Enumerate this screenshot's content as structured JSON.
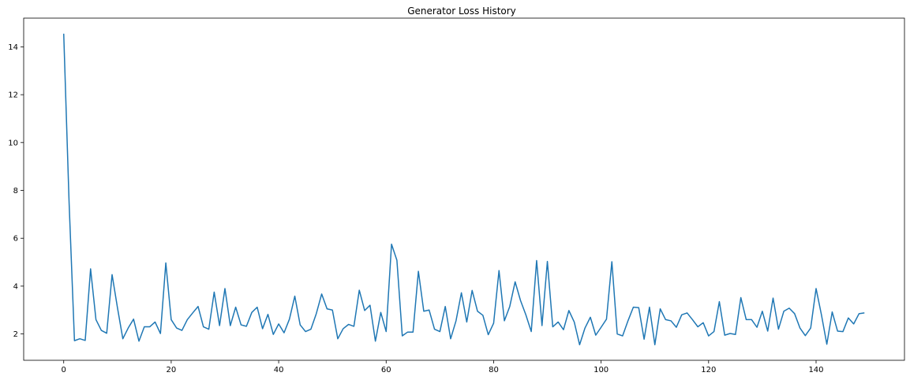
{
  "chart_data": {
    "type": "line",
    "title": "Generator Loss History",
    "xlabel": "",
    "ylabel": "",
    "xlim": [
      -7.45,
      156.45
    ],
    "ylim": [
      0.9,
      15.2
    ],
    "x_ticks": [
      0,
      20,
      40,
      60,
      80,
      100,
      120,
      140
    ],
    "y_ticks": [
      2,
      4,
      6,
      8,
      10,
      12,
      14
    ],
    "grid": false,
    "legend": "none",
    "series": [
      {
        "color": "#1f77b4",
        "x": [
          0,
          1,
          2,
          3,
          4,
          5,
          6,
          7,
          8,
          9,
          10,
          11,
          12,
          13,
          14,
          15,
          16,
          17,
          18,
          19,
          20,
          21,
          22,
          23,
          24,
          25,
          26,
          27,
          28,
          29,
          30,
          31,
          32,
          33,
          34,
          35,
          36,
          37,
          38,
          39,
          40,
          41,
          42,
          43,
          44,
          45,
          46,
          47,
          48,
          49,
          50,
          51,
          52,
          53,
          54,
          55,
          56,
          57,
          58,
          59,
          60,
          61,
          62,
          63,
          64,
          65,
          66,
          67,
          68,
          69,
          70,
          71,
          72,
          73,
          74,
          75,
          76,
          77,
          78,
          79,
          80,
          81,
          82,
          83,
          84,
          85,
          86,
          87,
          88,
          89,
          90,
          91,
          92,
          93,
          94,
          95,
          96,
          97,
          98,
          99,
          100,
          101,
          102,
          103,
          104,
          105,
          106,
          107,
          108,
          109,
          110,
          111,
          112,
          113,
          114,
          115,
          116,
          117,
          118,
          119,
          120,
          121,
          122,
          123,
          124,
          125,
          126,
          127,
          128,
          129,
          130,
          131,
          132,
          133,
          134,
          135,
          136,
          137,
          138,
          139,
          140,
          141,
          142,
          143,
          144,
          145,
          146,
          147,
          148,
          149
        ],
        "values": [
          14.55,
          7.5,
          1.72,
          1.8,
          1.73,
          4.72,
          2.6,
          2.15,
          2.03,
          4.48,
          3.1,
          1.8,
          2.25,
          2.62,
          1.7,
          2.3,
          2.3,
          2.5,
          2.02,
          4.97,
          2.6,
          2.25,
          2.15,
          2.6,
          2.88,
          3.15,
          2.3,
          2.2,
          3.75,
          2.35,
          3.9,
          2.35,
          3.12,
          2.38,
          2.32,
          2.9,
          3.12,
          2.22,
          2.82,
          1.98,
          2.42,
          2.05,
          2.62,
          3.58,
          2.38,
          2.1,
          2.2,
          2.85,
          3.67,
          3.05,
          3.0,
          1.8,
          2.22,
          2.4,
          2.32,
          3.83,
          2.98,
          3.2,
          1.7,
          2.9,
          2.1,
          5.75,
          5.08,
          1.92,
          2.08,
          2.08,
          4.62,
          2.95,
          3.0,
          2.2,
          2.1,
          3.15,
          1.8,
          2.55,
          3.72,
          2.5,
          3.82,
          2.95,
          2.78,
          1.97,
          2.45,
          4.65,
          2.55,
          3.15,
          4.18,
          3.4,
          2.8,
          2.1,
          5.07,
          2.35,
          5.03,
          2.3,
          2.5,
          2.18,
          2.98,
          2.5,
          1.55,
          2.25,
          2.7,
          1.95,
          2.28,
          2.62,
          5.02,
          2.0,
          1.92,
          2.55,
          3.12,
          3.1,
          1.78,
          3.12,
          1.55,
          3.05,
          2.6,
          2.55,
          2.28,
          2.8,
          2.88,
          2.6,
          2.3,
          2.47,
          1.92,
          2.1,
          3.35,
          1.95,
          2.02,
          1.98,
          3.52,
          2.6,
          2.6,
          2.28,
          2.95,
          2.12,
          3.5,
          2.2,
          2.95,
          3.08,
          2.85,
          2.25,
          1.93,
          2.25,
          3.9,
          2.8,
          1.57,
          2.92,
          2.12,
          2.1,
          2.67,
          2.42,
          2.85,
          2.88
        ]
      }
    ]
  }
}
